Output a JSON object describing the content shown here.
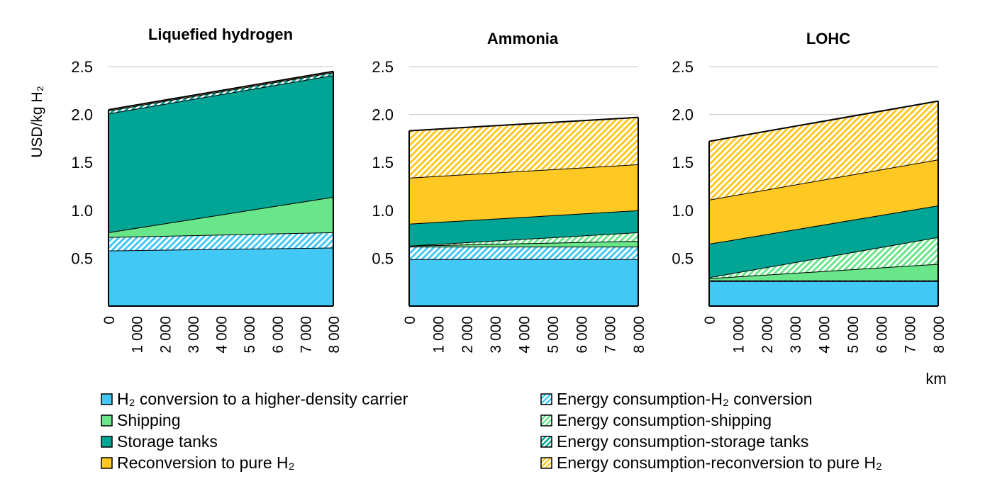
{
  "chart_data": {
    "type": "area",
    "stacked": true,
    "y_axis_title": "USD/kg H₂",
    "x_unit_label": "km",
    "ylim": [
      0,
      2.5
    ],
    "y_ticks": [
      0.5,
      1.0,
      1.5,
      2.0,
      2.5
    ],
    "y_tick_labels": [
      "0.5",
      "1.0",
      "1.5",
      "2.0",
      "2.5"
    ],
    "x_range": [
      0,
      8000
    ],
    "x_ticks": [
      0,
      1000,
      2000,
      3000,
      4000,
      5000,
      6000,
      7000,
      8000
    ],
    "x_tick_labels": [
      "0",
      "1 000",
      "2 000",
      "3 000",
      "4 000",
      "5 000",
      "6 000",
      "7 000",
      "8 000"
    ],
    "legend_items": [
      {
        "key": "conversion",
        "label": "H₂ conversion to a higher-density carrier",
        "color": "#41c8f5",
        "hatched": false
      },
      {
        "key": "energy_conversion",
        "label": "Energy consumption-H₂ conversion",
        "color": "#41c8f5",
        "hatched": true
      },
      {
        "key": "shipping",
        "label": "Shipping",
        "color": "#69e58a",
        "hatched": false
      },
      {
        "key": "energy_shipping",
        "label": "Energy consumption-shipping",
        "color": "#69e58a",
        "hatched": true
      },
      {
        "key": "storage",
        "label": "Storage tanks",
        "color": "#00a596",
        "hatched": false
      },
      {
        "key": "energy_storage",
        "label": "Energy consumption-storage tanks",
        "color": "#00a596",
        "hatched": true
      },
      {
        "key": "reconversion",
        "label": "Reconversion to pure H₂",
        "color": "#ffc822",
        "hatched": false
      },
      {
        "key": "energy_reconversion",
        "label": "Energy consumption-reconversion to pure H₂",
        "color": "#ffc822",
        "hatched": true
      }
    ],
    "panels": [
      {
        "title": "Liquefied hydrogen",
        "x": [
          0,
          8000
        ],
        "series": [
          {
            "key": "conversion",
            "values": [
              0.58,
              0.61
            ]
          },
          {
            "key": "energy_conversion",
            "values": [
              0.14,
              0.16
            ]
          },
          {
            "key": "shipping",
            "values": [
              0.05,
              0.37
            ]
          },
          {
            "key": "energy_shipping",
            "values": [
              0.0,
              0.0
            ]
          },
          {
            "key": "storage",
            "values": [
              1.24,
              1.27
            ]
          },
          {
            "key": "energy_storage",
            "values": [
              0.03,
              0.03
            ]
          },
          {
            "key": "reconversion",
            "values": [
              0.0,
              0.0
            ]
          },
          {
            "key": "energy_reconversion",
            "values": [
              0.01,
              0.01
            ]
          }
        ]
      },
      {
        "title": "Ammonia",
        "x": [
          0,
          8000
        ],
        "series": [
          {
            "key": "conversion",
            "values": [
              0.49,
              0.49
            ]
          },
          {
            "key": "energy_conversion",
            "values": [
              0.13,
              0.13
            ]
          },
          {
            "key": "shipping",
            "values": [
              0.01,
              0.06
            ]
          },
          {
            "key": "energy_shipping",
            "values": [
              0.0,
              0.09
            ]
          },
          {
            "key": "storage",
            "values": [
              0.23,
              0.23
            ]
          },
          {
            "key": "energy_storage",
            "values": [
              0.0,
              0.0
            ]
          },
          {
            "key": "reconversion",
            "values": [
              0.48,
              0.48
            ]
          },
          {
            "key": "energy_reconversion",
            "values": [
              0.49,
              0.49
            ]
          }
        ]
      },
      {
        "title": "LOHC",
        "x": [
          0,
          8000
        ],
        "series": [
          {
            "key": "conversion",
            "values": [
              0.26,
              0.26
            ]
          },
          {
            "key": "energy_conversion",
            "values": [
              0.01,
              0.01
            ]
          },
          {
            "key": "shipping",
            "values": [
              0.02,
              0.17
            ]
          },
          {
            "key": "energy_shipping",
            "values": [
              0.01,
              0.28
            ]
          },
          {
            "key": "storage",
            "values": [
              0.35,
              0.33
            ]
          },
          {
            "key": "energy_storage",
            "values": [
              0.0,
              0.0
            ]
          },
          {
            "key": "reconversion",
            "values": [
              0.46,
              0.48
            ]
          },
          {
            "key": "energy_reconversion",
            "values": [
              0.61,
              0.61
            ]
          }
        ]
      }
    ]
  }
}
